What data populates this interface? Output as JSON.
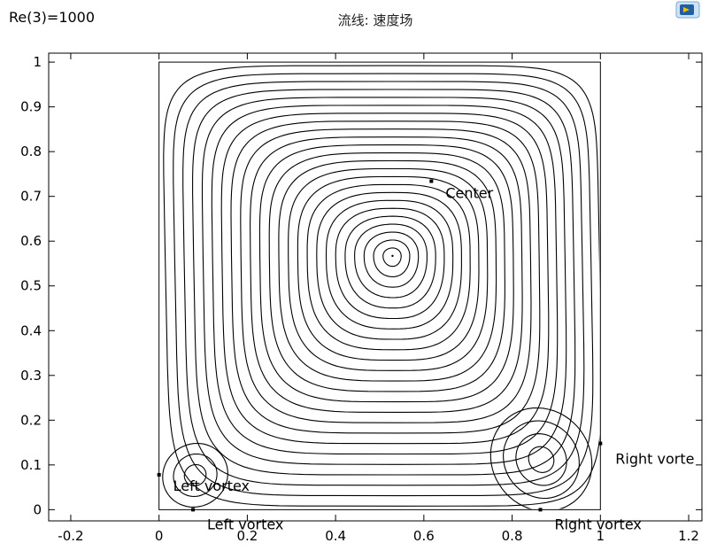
{
  "header": {
    "parameter_label": "Re(3)=1000",
    "plot_title": "流线: 速度场"
  },
  "chart_data": {
    "type": "streamline",
    "title": "流线: 速度场",
    "xlabel": "",
    "ylabel": "",
    "xlim": [
      -0.25,
      1.23
    ],
    "ylim": [
      -0.025,
      1.02
    ],
    "x_ticks": [
      -0.2,
      0,
      0.2,
      0.4,
      0.6,
      0.8,
      1,
      1.2
    ],
    "y_ticks": [
      0,
      0.1,
      0.2,
      0.3,
      0.4,
      0.5,
      0.6,
      0.7,
      0.8,
      0.9,
      1
    ],
    "x_tick_labels": [
      "-0.2",
      "0",
      "0.2",
      "0.4",
      "0.6",
      "0.8",
      "1",
      "1.2"
    ],
    "y_tick_labels": [
      "0",
      "0.1",
      "0.2",
      "0.3",
      "0.4",
      "0.5",
      "0.6",
      "0.7",
      "0.8",
      "0.9",
      "1"
    ],
    "domain": {
      "x": [
        0,
        1
      ],
      "y": [
        0,
        1
      ]
    },
    "primary_vortex": {
      "center": [
        0.529,
        0.567
      ]
    },
    "left_vortex": {
      "center": [
        0.082,
        0.077
      ]
    },
    "right_vortex": {
      "center": [
        0.866,
        0.112
      ]
    },
    "points": [
      {
        "name": "Center",
        "x": 0.617,
        "y": 0.734,
        "label": "Center"
      },
      {
        "name": "Left vortex",
        "x": 0.0,
        "y": 0.078,
        "label": "Left vortex"
      },
      {
        "name": "Left vortex (bottom)",
        "x": 0.077,
        "y": 0.0,
        "label": "Left vortex"
      },
      {
        "name": "Right vortex",
        "x": 1.0,
        "y": 0.148,
        "label": "Right vorte"
      },
      {
        "name": "Right vortex (bottom)",
        "x": 0.864,
        "y": 0.0,
        "label": "Right vortex"
      }
    ],
    "grid": false,
    "legend": "none"
  }
}
